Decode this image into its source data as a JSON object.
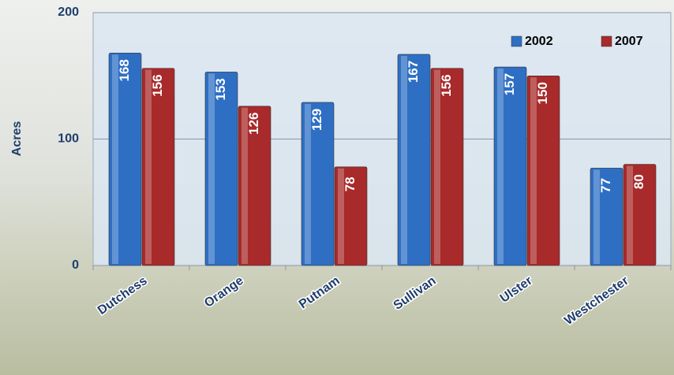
{
  "chart_data": {
    "type": "bar",
    "y_label": "Acres",
    "categories": [
      "Dutchess",
      "Orange",
      "Putnam",
      "Sullivan",
      "Ulster",
      "Westchester"
    ],
    "series": [
      {
        "name": "2002",
        "color": "#2e6fc4",
        "values": [
          168,
          153,
          129,
          167,
          157,
          77
        ]
      },
      {
        "name": "2007",
        "color": "#a82a2a",
        "values": [
          156,
          126,
          78,
          156,
          150,
          80
        ]
      }
    ],
    "ylim": [
      0,
      200
    ],
    "yticks": [
      0,
      100,
      200
    ],
    "grid": true,
    "legend": "top-right"
  }
}
